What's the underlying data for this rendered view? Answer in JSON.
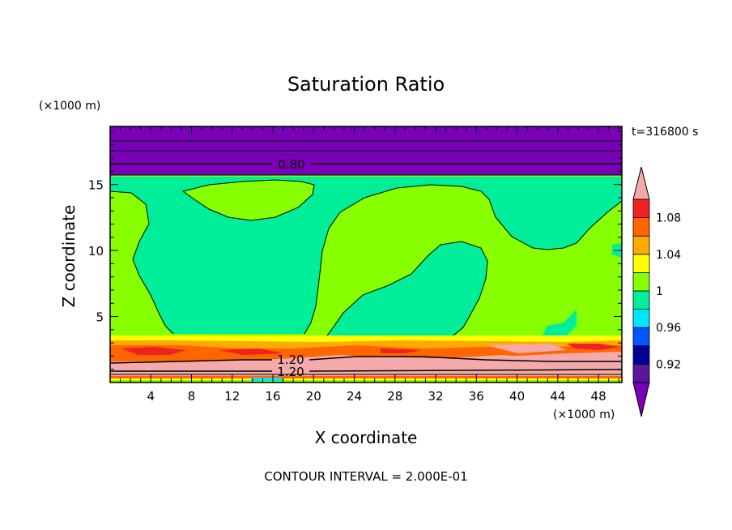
{
  "chart_data": {
    "type": "heatmap",
    "title": "Saturation Ratio",
    "xlabel": "X coordinate",
    "ylabel": "Z coordinate",
    "x_unit": "(×1000 m)",
    "y_unit": "(×1000 m)",
    "time_label": "t=316800 s",
    "footer": "CONTOUR INTERVAL = 2.000E-01",
    "xlim": [
      0,
      50.3
    ],
    "ylim": [
      0,
      19.4
    ],
    "x_ticks": [
      "4",
      "8",
      "12",
      "16",
      "20",
      "24",
      "28",
      "32",
      "36",
      "40",
      "44",
      "48"
    ],
    "y_ticks": [
      "5",
      "10",
      "15"
    ],
    "contour_labels": [
      "0.80",
      "1.20",
      "1.20"
    ],
    "colorbar": {
      "labels": [
        "1.08",
        "1.04",
        "1",
        "0.96",
        "0.92"
      ],
      "levels": [
        {
          "range": [
            0.9,
            0.92
          ],
          "color": "#5a169d"
        },
        {
          "range": [
            0.92,
            0.94
          ],
          "color": "#000099"
        },
        {
          "range": [
            0.94,
            0.96
          ],
          "color": "#0055ff"
        },
        {
          "range": [
            0.96,
            0.98
          ],
          "color": "#00e5ff"
        },
        {
          "range": [
            0.98,
            1.0
          ],
          "color": "#00ee99"
        },
        {
          "range": [
            1.0,
            1.02
          ],
          "color": "#88ff00"
        },
        {
          "range": [
            1.02,
            1.04
          ],
          "color": "#ffff00"
        },
        {
          "range": [
            1.04,
            1.06
          ],
          "color": "#ffaa00"
        },
        {
          "range": [
            1.06,
            1.08
          ],
          "color": "#ff6600"
        },
        {
          "range": [
            1.08,
            1.1
          ],
          "color": "#ee2222"
        }
      ],
      "under_color": "#7a00b8",
      "over_color": "#f4aaaa"
    },
    "fields": {
      "top_layer_value": "< 0.92",
      "upper_region_mix": [
        "1 to 1.02",
        "0.98 to 1"
      ],
      "lower_band_value": "> 1.10",
      "top_layer_base_km": 16.2,
      "lower_band_top_km": 3.8
    }
  }
}
